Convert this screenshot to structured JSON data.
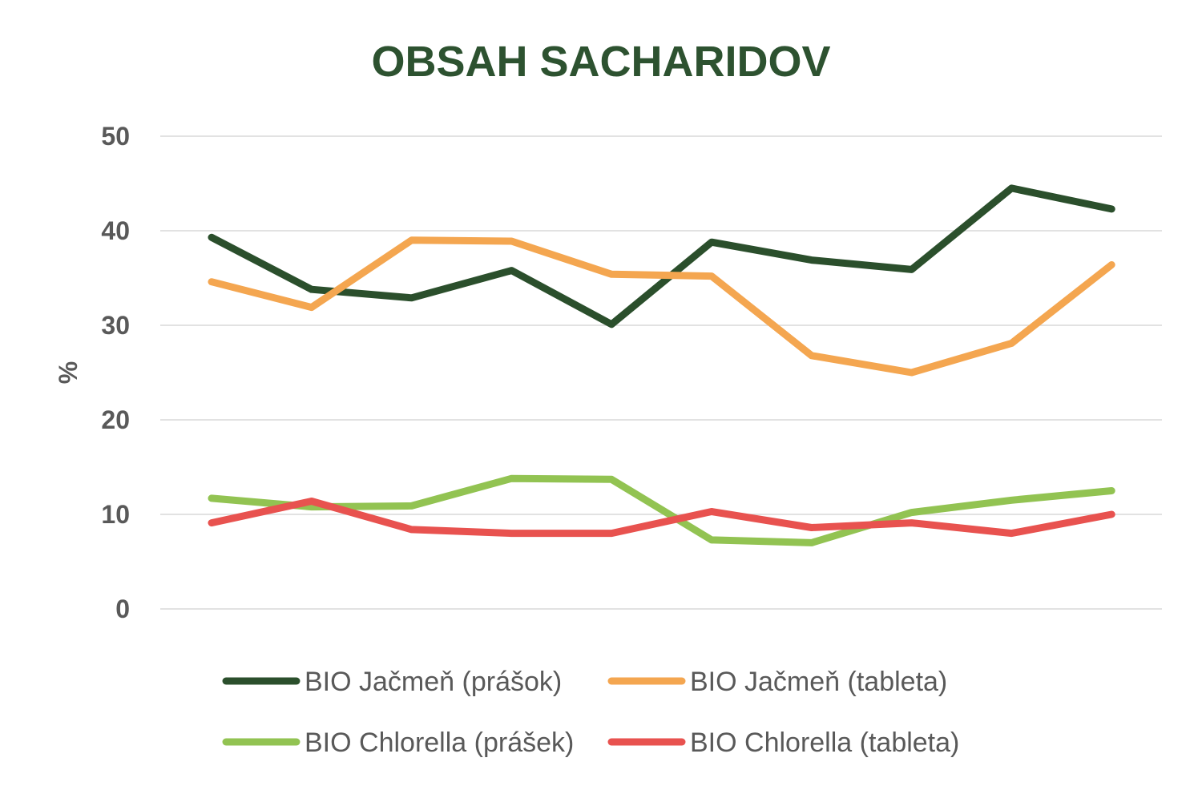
{
  "chart_data": {
    "type": "line",
    "title": "OBSAH SACHARIDOV",
    "ylabel": "%",
    "xlabel": "",
    "ylim": [
      0,
      50
    ],
    "yticks": [
      0,
      10,
      20,
      30,
      40,
      50
    ],
    "grid": true,
    "legend_position": "bottom",
    "x": [
      1,
      2,
      3,
      4,
      5,
      6,
      7,
      8,
      9,
      10
    ],
    "series": [
      {
        "name": "BIO Jačmeň (prášok)",
        "color": "#2b4f2c",
        "values": [
          39.3,
          33.8,
          32.9,
          35.8,
          30.1,
          38.8,
          36.9,
          35.9,
          44.5,
          42.3
        ]
      },
      {
        "name": "BIO Jačmeň (tableta)",
        "color": "#f4a650",
        "values": [
          34.6,
          31.9,
          39.0,
          38.9,
          35.4,
          35.2,
          26.8,
          25.0,
          28.1,
          36.4
        ]
      },
      {
        "name": "BIO Chlorella (prášek)",
        "color": "#92c352",
        "values": [
          11.7,
          10.8,
          10.9,
          13.8,
          13.7,
          7.3,
          7.0,
          10.2,
          11.5,
          12.5
        ]
      },
      {
        "name": "BIO Chlorella (tableta)",
        "color": "#e8524f",
        "values": [
          9.1,
          11.4,
          8.4,
          8.0,
          8.0,
          10.3,
          8.6,
          9.1,
          8.0,
          10.0
        ]
      }
    ]
  }
}
